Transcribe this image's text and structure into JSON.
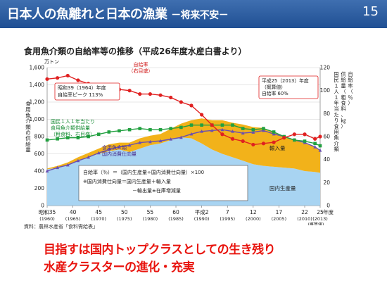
{
  "header": {
    "title": "日本人の魚離れと日本の漁業",
    "subtitle": "－将来不安－",
    "page_number": "15",
    "bg_color": "#2a5ca0"
  },
  "chart_data": {
    "type": "line",
    "title": "食用魚介類の自給率等の推移（平成26年度水産白書より）",
    "y_left_unit": "万トン",
    "y_left_label": "食用魚介類の供給量",
    "y_left_ticks": [
      "0",
      "200",
      "400",
      "600",
      "800",
      "1,000",
      "1,200",
      "1,400",
      "1,600"
    ],
    "y_left_range": [
      0,
      1600
    ],
    "y_right_label": "国民１人１年当たり食用魚介類供給量（粗食料、㎏）自給率（％）",
    "y_right_ticks": [
      "0",
      "20",
      "40",
      "60",
      "80",
      "100",
      "120"
    ],
    "y_right_range": [
      0,
      120
    ],
    "x_range": [
      1960,
      2013
    ],
    "x_tick_labels": [
      {
        "x": 1960,
        "top": "昭和35",
        "bottom": "(1960)"
      },
      {
        "x": 1965,
        "top": "40",
        "bottom": "(1965)"
      },
      {
        "x": 1970,
        "top": "45",
        "bottom": "(1970)"
      },
      {
        "x": 1975,
        "top": "50",
        "bottom": "(1975)"
      },
      {
        "x": 1980,
        "top": "55",
        "bottom": "(1980)"
      },
      {
        "x": 1985,
        "top": "60",
        "bottom": "(1985)"
      },
      {
        "x": 1990,
        "top": "平成2",
        "bottom": "(1990)"
      },
      {
        "x": 1995,
        "top": "7",
        "bottom": "(1995)"
      },
      {
        "x": 2000,
        "top": "12",
        "bottom": "(2000)"
      },
      {
        "x": 2005,
        "top": "17",
        "bottom": "(2005)"
      },
      {
        "x": 2010,
        "top": "22",
        "bottom": "(2010)"
      },
      {
        "x": 2013,
        "top": "25",
        "bottom": "(2013)"
      }
    ],
    "x_unit": "年度",
    "x_extra_label": "(概算値)",
    "series": [
      {
        "name": "自給率",
        "axis": "right",
        "color": "#e02020",
        "x": [
          1960,
          1962,
          1964,
          1966,
          1968,
          1970,
          1972,
          1974,
          1976,
          1978,
          1980,
          1982,
          1984,
          1986,
          1988,
          1990,
          1992,
          1994,
          1996,
          1998,
          2000,
          2002,
          2004,
          2006,
          2008,
          2010,
          2012,
          2013
        ],
        "values": [
          110,
          111,
          113,
          109,
          106,
          104,
          102,
          101,
          100,
          97,
          97,
          96,
          94,
          90,
          87,
          79,
          70,
          62,
          58,
          56,
          53,
          54,
          55,
          59,
          62,
          62,
          58,
          60
        ]
      },
      {
        "name": "国民１人１年当たり食用魚介類供給量",
        "axis": "right",
        "color": "#22a040",
        "x": [
          1960,
          1962,
          1964,
          1966,
          1968,
          1970,
          1972,
          1974,
          1976,
          1978,
          1980,
          1982,
          1984,
          1986,
          1988,
          1990,
          1992,
          1994,
          1996,
          1998,
          2000,
          2002,
          2004,
          2006,
          2008,
          2010,
          2012,
          2013
        ],
        "values": [
          57,
          58,
          59,
          59,
          60,
          62,
          64,
          65,
          66,
          67,
          66,
          66,
          67,
          68,
          70,
          70,
          70,
          70,
          70,
          67,
          66,
          67,
          64,
          60,
          57,
          56,
          54,
          52
        ]
      },
      {
        "name": "食用魚介類国内消費仕向量",
        "axis": "left",
        "color": "#6a4fb0",
        "x": [
          1960,
          1962,
          1964,
          1966,
          1968,
          1970,
          1972,
          1974,
          1976,
          1978,
          1980,
          1982,
          1984,
          1986,
          1988,
          1990,
          1992,
          1994,
          1996,
          1998,
          2000,
          2002,
          2004,
          2006,
          2008,
          2010,
          2012,
          2013
        ],
        "values": [
          400,
          440,
          470,
          520,
          560,
          610,
          650,
          680,
          700,
          730,
          740,
          750,
          770,
          790,
          830,
          860,
          870,
          880,
          860,
          840,
          850,
          870,
          830,
          800,
          760,
          730,
          680,
          640
        ]
      },
      {
        "name": "国内生産量",
        "axis": "left",
        "color": "#a8d4f2",
        "kind": "area",
        "x": [
          1960,
          1962,
          1964,
          1966,
          1968,
          1970,
          1972,
          1974,
          1976,
          1978,
          1980,
          1982,
          1984,
          1986,
          1988,
          1990,
          1992,
          1994,
          1996,
          1998,
          2000,
          2002,
          2004,
          2006,
          2008,
          2010,
          2012,
          2013
        ],
        "values": [
          420,
          440,
          470,
          520,
          560,
          600,
          630,
          650,
          620,
          660,
          700,
          720,
          760,
          790,
          780,
          720,
          650,
          600,
          560,
          520,
          480,
          460,
          450,
          440,
          430,
          400,
          390,
          380
        ]
      },
      {
        "name": "輸入量",
        "axis": "left",
        "color": "#f2b21a",
        "kind": "area",
        "x": [
          1960,
          1962,
          1964,
          1966,
          1968,
          1970,
          1972,
          1974,
          1976,
          1978,
          1980,
          1982,
          1984,
          1986,
          1988,
          1990,
          1992,
          1994,
          1996,
          1998,
          2000,
          2002,
          2004,
          2006,
          2008,
          2010,
          2012,
          2013
        ],
        "values": [
          10,
          20,
          30,
          40,
          50,
          60,
          80,
          80,
          110,
          120,
          110,
          110,
          130,
          160,
          210,
          290,
          340,
          390,
          400,
          420,
          430,
          440,
          400,
          360,
          330,
          320,
          290,
          260
        ]
      }
    ],
    "annotations": {
      "jikyu_label": "自給率\n（右目盛）",
      "peak_label": "昭和39（1964）年度\n自給率ピーク 113%",
      "latest_label": "平成25（2013）年度\n（概算値）\n自給率 60%",
      "percap_label": "国民１人１年当たり\n食用魚介類供給量\n（粗食料、右目盛）",
      "consumption_label": "食用魚介類\n国内消費仕向量",
      "import_label": "輸入量",
      "production_label": "国内生産量",
      "formula1": "自給率（％）＝（国内生産量÷国内消費仕向量）×100",
      "formula2": "※国内消費仕向量＝国内生産量＋輸入量",
      "formula3": "－輸出量±在庫増減量"
    },
    "source": "資料：農林水産省「食料需給表」"
  },
  "bottom_text": {
    "line1": "目指すは国内トップクラスとしての生き残り",
    "line2": "水産クラスターの進化・充実"
  }
}
